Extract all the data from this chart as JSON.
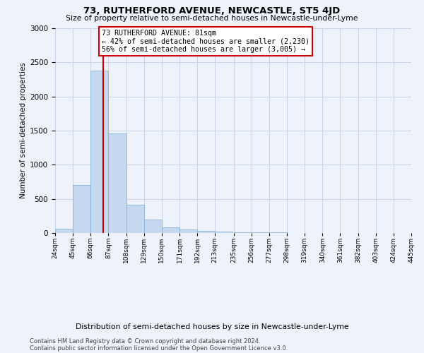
{
  "title": "73, RUTHERFORD AVENUE, NEWCASTLE, ST5 4JD",
  "subtitle": "Size of property relative to semi-detached houses in Newcastle-under-Lyme",
  "xlabel": "Distribution of semi-detached houses by size in Newcastle-under-Lyme",
  "ylabel": "Number of semi-detached properties",
  "property_size": 81,
  "annotation_text_line1": "73 RUTHERFORD AVENUE: 81sqm",
  "annotation_text_line2": "← 42% of semi-detached houses are smaller (2,230)",
  "annotation_text_line3": "56% of semi-detached houses are larger (3,005) →",
  "bin_edges": [
    24,
    45,
    66,
    87,
    108,
    129,
    150,
    171,
    192,
    213,
    235,
    256,
    277,
    298,
    319,
    340,
    361,
    382,
    403,
    424,
    445
  ],
  "bin_counts": [
    60,
    700,
    2380,
    1460,
    415,
    195,
    85,
    50,
    30,
    20,
    15,
    10,
    8,
    5,
    4,
    3,
    2,
    1,
    1,
    0
  ],
  "bar_color": "#c5d8f0",
  "bar_edge_color": "#7aadd4",
  "red_line_color": "#cc0000",
  "annotation_box_edge": "#cc0000",
  "background_color": "#eef2fa",
  "grid_color": "#c8d4e8",
  "ylim": [
    0,
    3000
  ],
  "yticks": [
    0,
    500,
    1000,
    1500,
    2000,
    2500,
    3000
  ],
  "footer_line1": "Contains HM Land Registry data © Crown copyright and database right 2024.",
  "footer_line2": "Contains public sector information licensed under the Open Government Licence v3.0."
}
